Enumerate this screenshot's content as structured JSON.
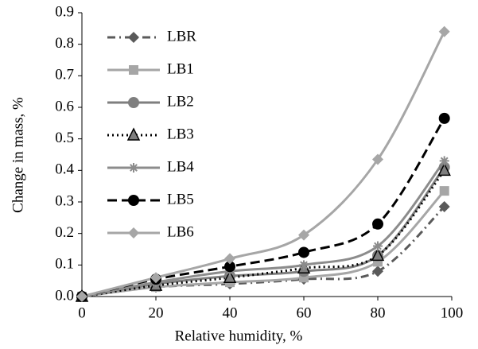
{
  "chart_data": {
    "type": "line",
    "xlabel": "Relative humidity, %",
    "ylabel": "Change in mass, %",
    "x": [
      0,
      20,
      40,
      60,
      80,
      98
    ],
    "xlim": [
      0,
      100
    ],
    "xticks": [
      0,
      20,
      40,
      60,
      80,
      100
    ],
    "ylim": [
      0,
      0.9
    ],
    "yticks": [
      {
        "value": 0,
        "label": "0.0"
      },
      0.1,
      0.2,
      0.3,
      0.4,
      0.5,
      0.6,
      0.7,
      0.8,
      0.9
    ],
    "legend": "top-left",
    "smooth": true,
    "series": [
      {
        "name": "LBR",
        "color": "#5a5a5a",
        "marker": "diamond",
        "dash": "dashdot",
        "values": [
          0,
          0.03,
          0.04,
          0.055,
          0.08,
          0.285
        ]
      },
      {
        "name": "LB1",
        "color": "#a6a6a6",
        "marker": "square",
        "dash": "solid",
        "values": [
          0,
          0.03,
          0.045,
          0.06,
          0.11,
          0.335
        ]
      },
      {
        "name": "LB2",
        "color": "#7f7f7f",
        "marker": "circle",
        "dash": "solid",
        "values": [
          0,
          0.04,
          0.065,
          0.08,
          0.13,
          0.41
        ]
      },
      {
        "name": "LB3",
        "color": "#000000",
        "marker": "triangle",
        "dash": "dotted",
        "values": [
          0,
          0.035,
          0.06,
          0.09,
          0.13,
          0.4
        ]
      },
      {
        "name": "LB4",
        "color": "#8c8c8c",
        "marker": "asterisk",
        "dash": "solid",
        "values": [
          0,
          0.045,
          0.08,
          0.1,
          0.16,
          0.43
        ]
      },
      {
        "name": "LB5",
        "color": "#000000",
        "marker": "circle",
        "dash": "dashed",
        "values": [
          0,
          0.055,
          0.095,
          0.14,
          0.23,
          0.565
        ]
      },
      {
        "name": "LB6",
        "color": "#a6a6a6",
        "marker": "diamond",
        "dash": "solid",
        "values": [
          0,
          0.06,
          0.12,
          0.195,
          0.435,
          0.84
        ]
      }
    ]
  }
}
